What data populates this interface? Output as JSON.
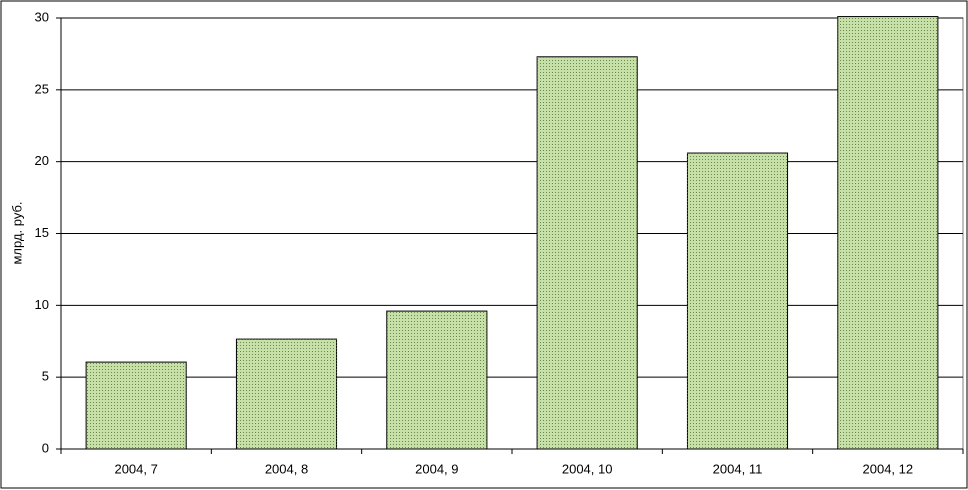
{
  "chart_data": {
    "type": "bar",
    "y_label": "млрд. руб.",
    "categories": [
      "2004, 7",
      "2004, 8",
      "2004, 9",
      "2004, 10",
      "2004, 11",
      "2004, 12"
    ],
    "values": [
      6.05,
      7.65,
      9.6,
      27.3,
      20.6,
      30.1
    ],
    "color": "#c6e0a8",
    "ylim": [
      0,
      30
    ],
    "yticks": [
      0,
      5,
      10,
      15,
      20,
      25,
      30
    ],
    "grid": true
  }
}
